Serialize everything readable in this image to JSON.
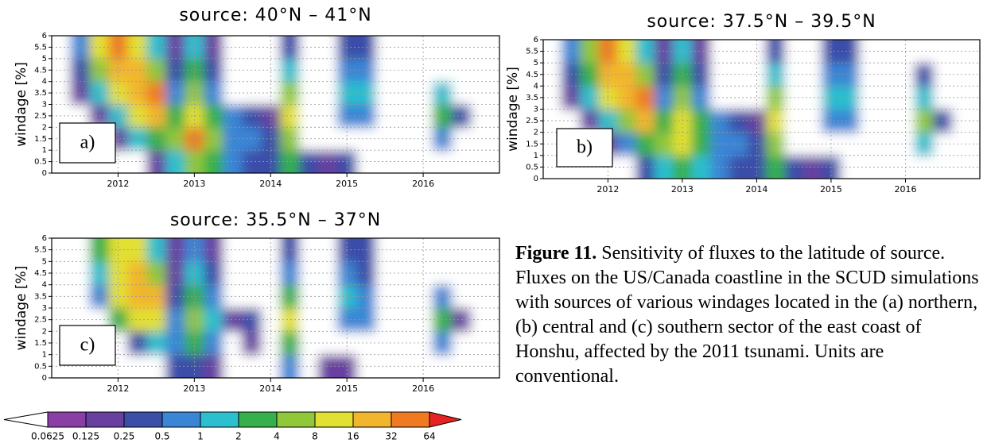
{
  "chart_data": [
    {
      "type": "contour",
      "title": "source: 40°N – 41°N",
      "ylabel": "windage [%]",
      "panel_label": "a)",
      "xlim": [
        2011.13,
        2017.0
      ],
      "ylim": [
        0,
        6
      ],
      "xticks": [
        2012,
        2013,
        2014,
        2015,
        2016
      ],
      "yticks": [
        0,
        0.5,
        1,
        1.5,
        2,
        2.5,
        3,
        3.5,
        4,
        4.5,
        5,
        5.5,
        6
      ],
      "grid": true,
      "x": [
        2011.25,
        2011.5,
        2011.75,
        2012,
        2012.25,
        2012.5,
        2012.75,
        2013,
        2013.25,
        2013.5,
        2013.75,
        2014,
        2014.25,
        2014.5,
        2014.75,
        2015,
        2015.25,
        2015.5,
        2015.75,
        2016,
        2016.25,
        2016.5,
        2016.75
      ],
      "y": [
        0.5,
        1.5,
        2.5,
        3.5,
        4.5,
        5.5
      ],
      "z": [
        [
          0,
          0,
          0,
          0,
          0,
          0.125,
          1,
          4,
          2,
          0.5,
          0.25,
          0.25,
          2,
          0.25,
          0.125,
          0.25,
          0,
          0,
          0,
          0,
          0,
          0,
          0
        ],
        [
          0,
          0,
          0,
          0.125,
          1,
          2,
          4,
          32,
          4,
          0.5,
          0.5,
          0.25,
          4,
          0,
          0,
          0,
          0,
          0,
          0,
          0,
          0.5,
          0,
          0
        ],
        [
          0,
          0,
          0.125,
          1,
          8,
          16,
          2,
          8,
          2,
          0.5,
          0.25,
          0.125,
          8,
          0,
          0,
          0.5,
          0.5,
          0,
          0,
          0,
          2,
          0.25,
          0
        ],
        [
          0,
          0.125,
          1,
          8,
          16,
          32,
          0.5,
          4,
          0.5,
          0,
          0,
          0,
          4,
          0,
          0,
          1,
          1,
          0,
          0,
          0,
          1,
          0,
          0
        ],
        [
          0,
          0.25,
          4,
          16,
          16,
          4,
          0.25,
          2,
          0.25,
          0,
          0,
          0,
          1,
          0,
          0,
          0.5,
          0.5,
          0,
          0,
          0,
          0,
          0,
          0
        ],
        [
          0,
          0.5,
          8,
          32,
          8,
          1,
          0.125,
          1,
          0.125,
          0,
          0,
          0,
          0.25,
          0,
          0,
          0.25,
          0.25,
          0,
          0,
          0,
          0,
          0,
          0
        ]
      ]
    },
    {
      "type": "contour",
      "title": "source: 37.5°N – 39.5°N",
      "ylabel": "windage [%]",
      "panel_label": "b)",
      "xlim": [
        2011.13,
        2017.0
      ],
      "ylim": [
        0,
        6
      ],
      "xticks": [
        2012,
        2013,
        2014,
        2015,
        2016
      ],
      "yticks": [
        0,
        0.5,
        1,
        1.5,
        2,
        2.5,
        3,
        3.5,
        4,
        4.5,
        5,
        5.5,
        6
      ],
      "grid": true,
      "x": [
        2011.25,
        2011.5,
        2011.75,
        2012,
        2012.25,
        2012.5,
        2012.75,
        2013,
        2013.25,
        2013.5,
        2013.75,
        2014,
        2014.25,
        2014.5,
        2014.75,
        2015,
        2015.25,
        2015.5,
        2015.75,
        2016,
        2016.25,
        2016.5,
        2016.75
      ],
      "y": [
        0.5,
        1.5,
        2.5,
        3.5,
        4.5,
        5.5
      ],
      "z": [
        [
          0,
          0,
          0,
          0,
          0,
          0.25,
          1,
          2,
          1,
          0.5,
          0.25,
          0.25,
          2,
          0.25,
          0.125,
          0.25,
          0,
          0,
          0,
          0,
          0,
          0,
          0
        ],
        [
          0,
          0,
          0,
          0.125,
          0.5,
          2,
          4,
          8,
          2,
          0.5,
          0.5,
          0.25,
          4,
          0,
          0,
          0,
          0,
          0,
          0,
          0,
          1,
          0,
          0
        ],
        [
          0,
          0,
          0.125,
          1,
          4,
          16,
          2,
          8,
          2,
          0.5,
          0.25,
          0.125,
          8,
          0,
          0,
          0.5,
          0.5,
          0,
          0,
          0,
          4,
          0.25,
          0
        ],
        [
          0,
          0.125,
          1,
          8,
          16,
          32,
          0.5,
          4,
          0.5,
          0,
          0,
          0,
          4,
          0,
          0,
          1,
          1,
          0,
          0,
          0,
          1,
          0,
          0
        ],
        [
          0,
          0.25,
          2,
          16,
          16,
          4,
          0.25,
          2,
          0.25,
          0,
          0,
          0,
          1,
          0,
          0,
          0.5,
          0.5,
          0,
          0,
          0,
          0.25,
          0,
          0
        ],
        [
          0,
          0.5,
          4,
          32,
          8,
          1,
          0.125,
          1,
          0.125,
          0,
          0,
          0,
          0.25,
          0,
          0,
          0.25,
          0.25,
          0,
          0,
          0,
          0,
          0,
          0
        ]
      ]
    },
    {
      "type": "contour",
      "title": "source: 35.5°N – 37°N",
      "ylabel": "windage [%]",
      "panel_label": "c)",
      "xlim": [
        2011.13,
        2017.0
      ],
      "ylim": [
        0,
        6
      ],
      "xticks": [
        2012,
        2013,
        2014,
        2015,
        2016
      ],
      "yticks": [
        0,
        0.5,
        1,
        1.5,
        2,
        2.5,
        3,
        3.5,
        4,
        4.5,
        5,
        5.5,
        6
      ],
      "grid": true,
      "x": [
        2011.25,
        2011.5,
        2011.75,
        2012,
        2012.25,
        2012.5,
        2012.75,
        2013,
        2013.25,
        2013.5,
        2013.75,
        2014,
        2014.25,
        2014.5,
        2014.75,
        2015,
        2015.25,
        2015.5,
        2015.75,
        2016,
        2016.25,
        2016.5,
        2016.75
      ],
      "y": [
        0.5,
        1.5,
        2.5,
        3.5,
        4.5,
        5.5
      ],
      "z": [
        [
          0,
          0,
          0,
          0,
          0,
          0,
          0.25,
          0.25,
          0.125,
          0,
          0,
          0,
          0.5,
          0,
          0.125,
          0.125,
          0,
          0,
          0,
          0,
          0,
          0,
          0
        ],
        [
          0,
          0,
          0,
          0,
          0.25,
          1,
          0.5,
          2,
          0.5,
          0,
          0.125,
          0,
          2,
          0,
          0,
          0,
          0,
          0,
          0,
          0,
          0.5,
          0,
          0
        ],
        [
          0,
          0,
          0,
          2,
          8,
          8,
          0.5,
          4,
          1,
          0.125,
          0.25,
          0,
          8,
          0,
          0,
          0.5,
          0.5,
          0,
          0,
          0,
          2,
          0.125,
          0
        ],
        [
          0,
          0,
          0.5,
          8,
          16,
          16,
          0.25,
          2,
          0.5,
          0,
          0,
          0,
          2,
          0,
          0,
          1,
          0.5,
          0,
          0,
          0,
          0.5,
          0,
          0
        ],
        [
          0,
          0,
          1,
          8,
          16,
          4,
          0.125,
          1,
          0.25,
          0,
          0,
          0,
          0.5,
          0,
          0,
          0.5,
          0.25,
          0,
          0,
          0,
          0,
          0,
          0
        ],
        [
          0,
          0,
          2,
          8,
          8,
          1,
          0.125,
          0.5,
          0.125,
          0,
          0,
          0,
          0.25,
          0,
          0,
          0.25,
          0.25,
          0,
          0,
          0,
          0,
          0,
          0
        ]
      ]
    }
  ],
  "colorbar": {
    "levels": [
      0.0625,
      0.125,
      0.25,
      0.5,
      1,
      2,
      4,
      8,
      16,
      32,
      64
    ],
    "colors": [
      "#ffffff",
      "#8a3fa6",
      "#6840a0",
      "#3b4ea8",
      "#3a86d6",
      "#2bbfcf",
      "#35b04a",
      "#90c83a",
      "#e2e032",
      "#f2b52e",
      "#f07a22",
      "#e62222"
    ]
  },
  "caption": {
    "label": "Figure 11.",
    "text": "Sensitivity of fluxes to the latitude of source. Fluxes on the US/Canada coastline in the SCUD simulations with sources of various windages located in the (a) northern, (b) central and (c) southern sector of the east coast of Honshu, affected by the 2011 tsunami. Units are conventional."
  }
}
